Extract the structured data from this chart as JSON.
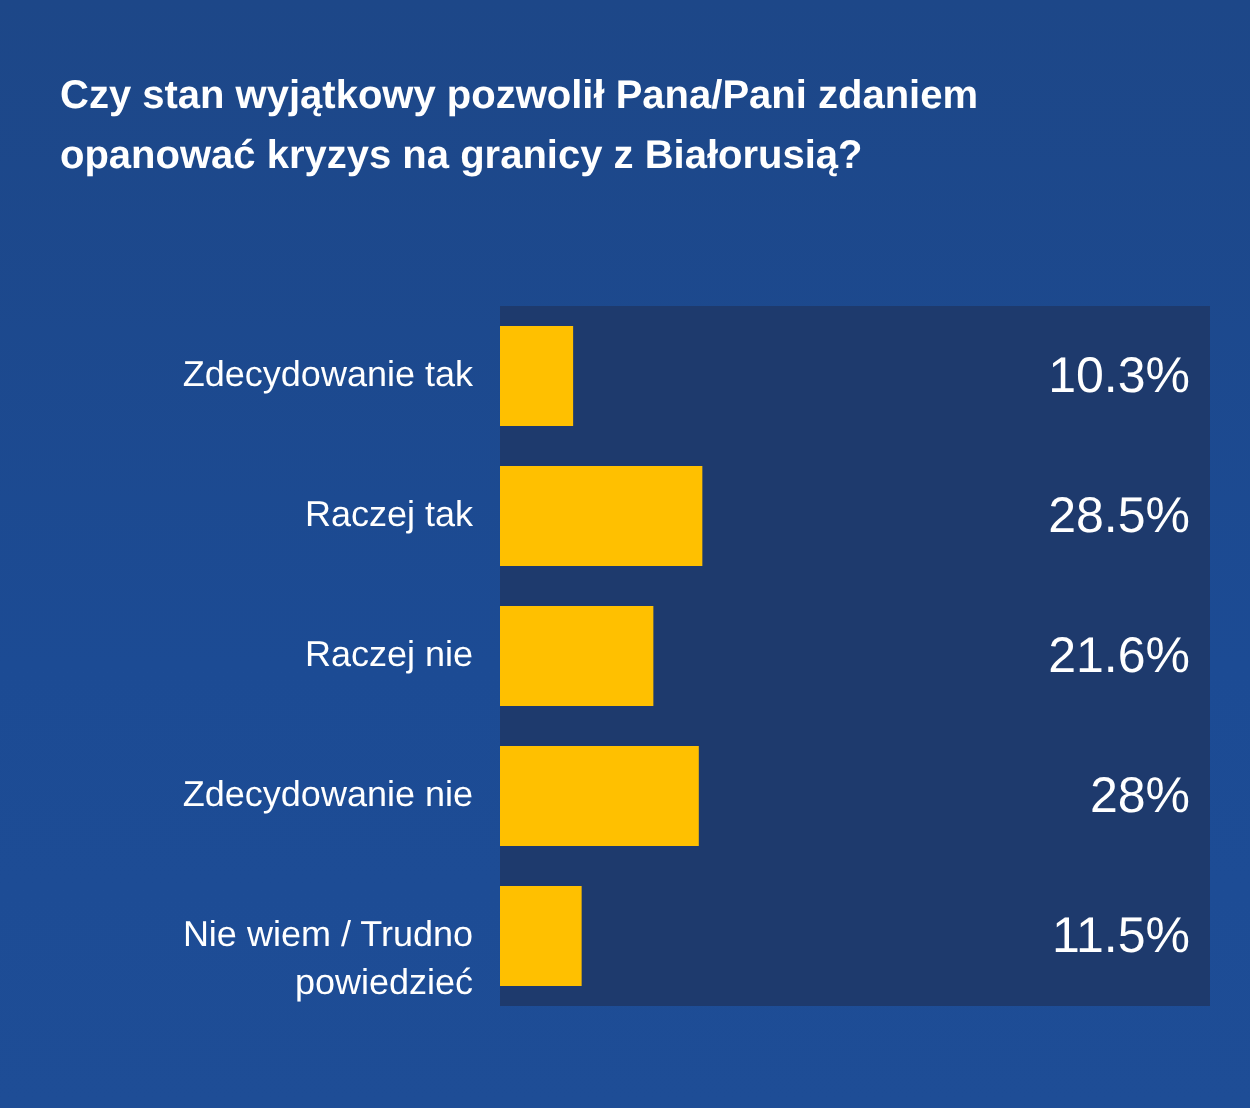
{
  "chart_data": {
    "type": "bar",
    "orientation": "horizontal",
    "title": "Czy stan wyjątkowy pozwolił Pana/Pani zdaniem opanować kryzys na granicy z Białorusią?",
    "categories": [
      "Zdecydowanie tak",
      "Raczej tak",
      "Raczej nie",
      "Zdecydowanie nie",
      "Nie wiem / Trudno\npowiedzieć"
    ],
    "series": [
      {
        "color": "#ffc000",
        "values": [
          10.3,
          28.5,
          21.6,
          28,
          11.5
        ],
        "value_labels": [
          "10.3%",
          "28.5%",
          "21.6%",
          "28%",
          "11.5%"
        ]
      }
    ],
    "xlim": [
      0,
      100
    ],
    "tick_labels": "y"
  }
}
